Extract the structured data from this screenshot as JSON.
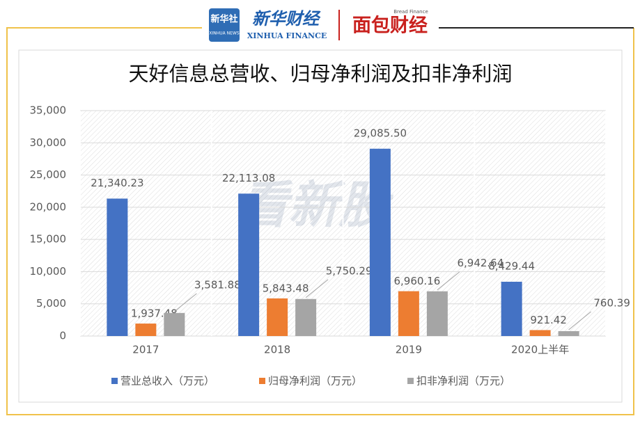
{
  "branding": {
    "xinhua_news_cn": "新华社",
    "xinhua_news_en": "XINHUA NEWS",
    "xinhua_finance_cn": "新华财经",
    "xinhua_finance_en": "XINHUA FINANCE",
    "bread_finance_cn": "面包财经",
    "bread_finance_en": "Bread Finance",
    "watermark": "看新股"
  },
  "chart_data": {
    "type": "bar",
    "title": "天好信息总营收、归母净利润及扣非净利润",
    "categories": [
      "2017",
      "2018",
      "2019",
      "2020上半年"
    ],
    "series": [
      {
        "name": "营业总收入（万元）",
        "color": "#4472c4",
        "values": [
          21340.23,
          22113.08,
          29085.5,
          8429.44
        ],
        "value_labels": [
          "21,340.23",
          "22,113.08",
          "29,085.50",
          "8,429.44"
        ]
      },
      {
        "name": "归母净利润（万元）",
        "color": "#ed7d31",
        "values": [
          1937.48,
          5843.48,
          6960.16,
          921.42
        ],
        "value_labels": [
          "1,937.48",
          "5,843.48",
          "6,960.16",
          "921.42"
        ]
      },
      {
        "name": "扣非净利润（万元）",
        "color": "#a5a5a5",
        "values": [
          3581.88,
          5750.29,
          6942.64,
          760.39
        ],
        "value_labels": [
          "3,581.88",
          "5,750.29",
          "6,942.64",
          "760.39"
        ]
      }
    ],
    "ylim": [
      0,
      35000
    ],
    "yticks": [
      0,
      {
        "value": 5000,
        "label": "5,000"
      },
      {
        "value": 10000,
        "label": "10,000"
      },
      {
        "value": 15000,
        "label": "15,000"
      },
      {
        "value": 20000,
        "label": "20,000"
      },
      {
        "value": 25000,
        "label": "25,000"
      },
      {
        "value": 30000,
        "label": "30,000"
      },
      {
        "value": 35000,
        "label": "35,000"
      }
    ],
    "grid": true,
    "legend": "bottom"
  }
}
